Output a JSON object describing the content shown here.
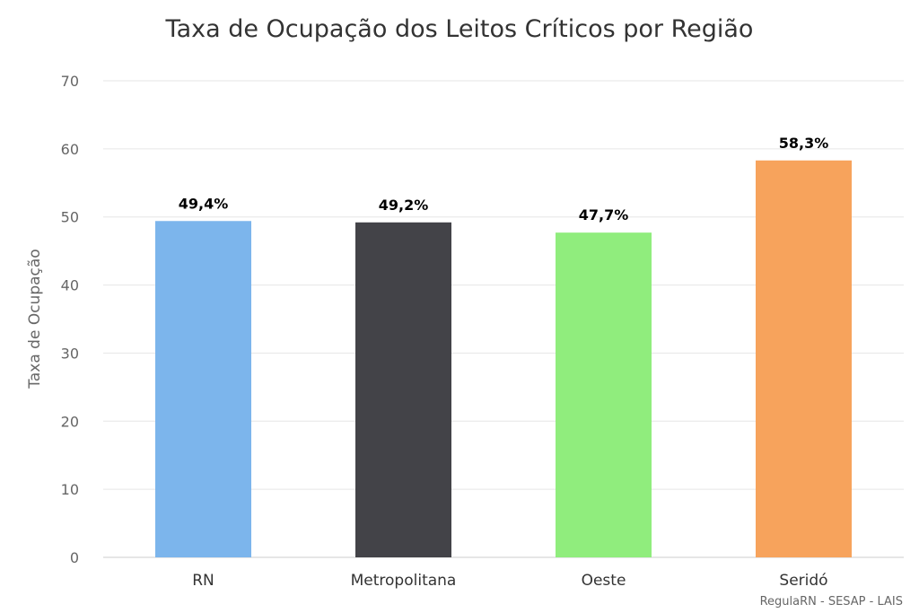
{
  "chart_data": {
    "type": "bar",
    "title": "Taxa de Ocupação dos Leitos Críticos por Região",
    "xlabel": "",
    "ylabel": "Taxa de Ocupação",
    "ylim": [
      0,
      70
    ],
    "yticks": [
      0,
      10,
      20,
      30,
      40,
      50,
      60,
      70
    ],
    "grid": true,
    "categories": [
      "RN",
      "Metropolitana",
      "Oeste",
      "Seridó"
    ],
    "values": [
      49.4,
      49.2,
      47.7,
      58.3
    ],
    "data_labels": [
      "49,4%",
      "49,2%",
      "47,7%",
      "58,3%"
    ],
    "colors": [
      "#7cb5ec",
      "#434348",
      "#90ed7d",
      "#f7a35c"
    ]
  },
  "credits": "RegulaRN - SESAP - LAIS"
}
